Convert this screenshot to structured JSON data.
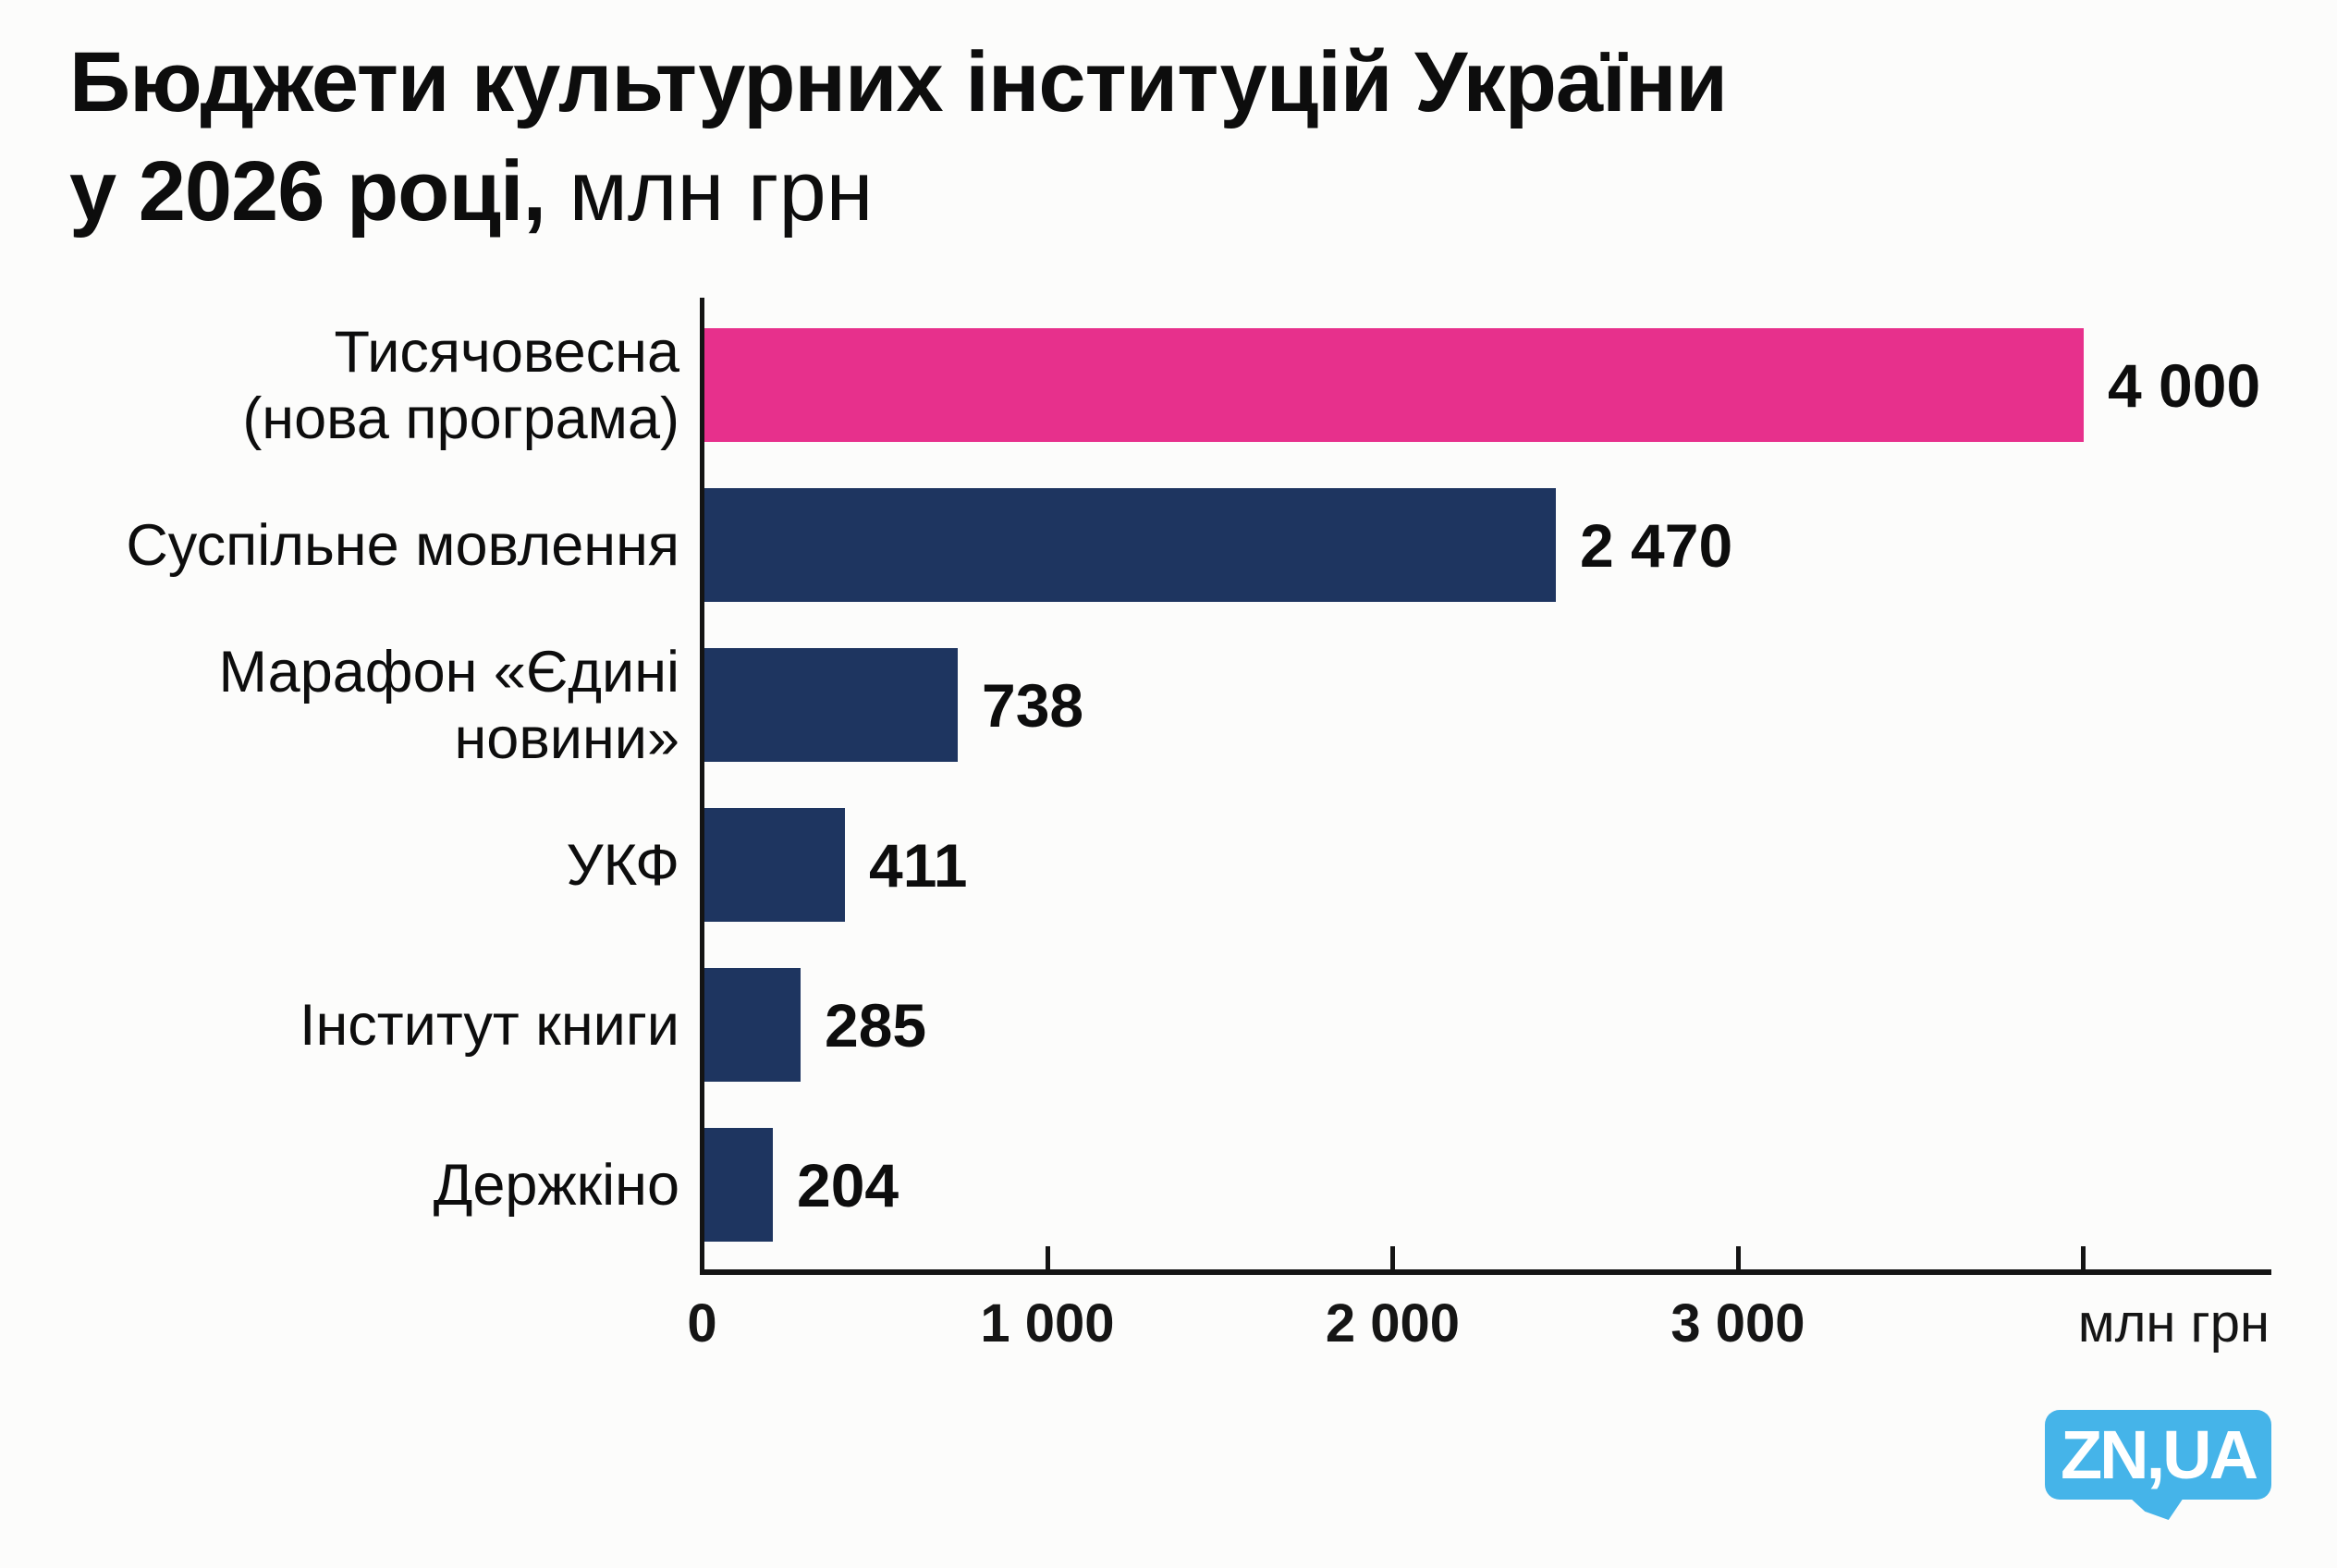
{
  "title": {
    "line1": "Бюджети культурних інституцій України",
    "line2_bold": "у 2026 році,",
    "line2_regular": " млн грн"
  },
  "chart_data": {
    "type": "bar",
    "orientation": "horizontal",
    "title": "Бюджети культурних інституцій України у 2026 році, млн грн",
    "unit": "млн грн",
    "categories": [
      "Тисячовесна\n(нова програма)",
      "Суспільне мовлення",
      "Марафон «Єдині\nновини»",
      "УКФ",
      "Інститут книги",
      "Держкіно"
    ],
    "values": [
      4000,
      2470,
      738,
      411,
      285,
      204
    ],
    "value_labels": [
      "4 000",
      "2 470",
      "738",
      "411",
      "285",
      "204"
    ],
    "bar_colors": [
      "#e7308c",
      "#1e3560",
      "#1e3560",
      "#1e3560",
      "#1e3560",
      "#1e3560"
    ],
    "xlim": [
      0,
      4000
    ],
    "x_ticks": [
      0,
      1000,
      2000,
      3000,
      4000
    ],
    "x_tick_labels": [
      "0",
      "1 000",
      "2 000",
      "3 000"
    ],
    "x_axis_unit_label": "млн грн",
    "grid": false,
    "legend": null
  },
  "colors": {
    "accent_pink": "#e7308c",
    "navy": "#1e3560",
    "logo_blue": "#45b4e9",
    "text": "#0d0d0d",
    "background": "#fcfcfb"
  },
  "logo": {
    "text": "ZN,UA"
  }
}
